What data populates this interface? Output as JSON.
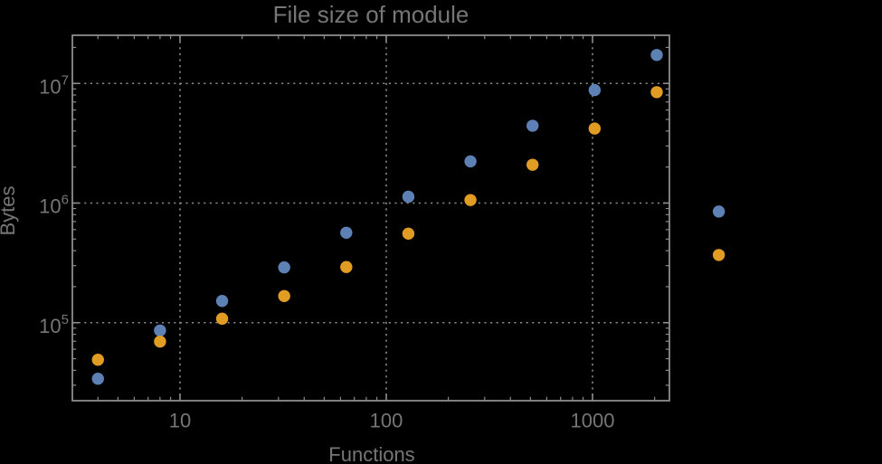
{
  "background_color": "#000000",
  "styles": {
    "frame_color": "#8c8c8c",
    "grid_color": "#878787",
    "text_color": "#767676",
    "series_blue": "#5E81B5",
    "series_orange": "#E19C24"
  },
  "chart_data": {
    "type": "scatter",
    "title": "File size of module",
    "xlabel": "Functions",
    "ylabel": "Bytes",
    "x_scale": "log",
    "y_scale": "log",
    "x_range": [
      3.05,
      2360
    ],
    "y_range": [
      22400,
      25300000
    ],
    "grid": "dotted gridlines at major decades only",
    "legend": "none",
    "x": [
      4,
      8,
      16,
      32,
      64,
      128,
      256,
      512,
      1024,
      2048,
      4096
    ],
    "series": [
      {
        "name": "series-blue",
        "color": "#5E81B5",
        "values": [
          34000,
          86000,
          152000,
          290000,
          565000,
          1130000,
          2230000,
          4430000,
          8800000,
          17300000,
          850000
        ]
      },
      {
        "name": "series-orange",
        "color": "#E19C24",
        "values": [
          49000,
          69500,
          108000,
          167000,
          292000,
          555000,
          1060000,
          2090000,
          4200000,
          8450000,
          368000
        ]
      }
    ],
    "x_ticks": [
      {
        "value": 10,
        "label": "10"
      },
      {
        "value": 100,
        "label": "100"
      },
      {
        "value": 1000,
        "label": "1000"
      }
    ],
    "y_ticks": [
      {
        "value": 100000,
        "base": "10",
        "exp": "5"
      },
      {
        "value": 1000000,
        "base": "10",
        "exp": "6"
      },
      {
        "value": 10000000,
        "base": "10",
        "exp": "7"
      }
    ]
  }
}
